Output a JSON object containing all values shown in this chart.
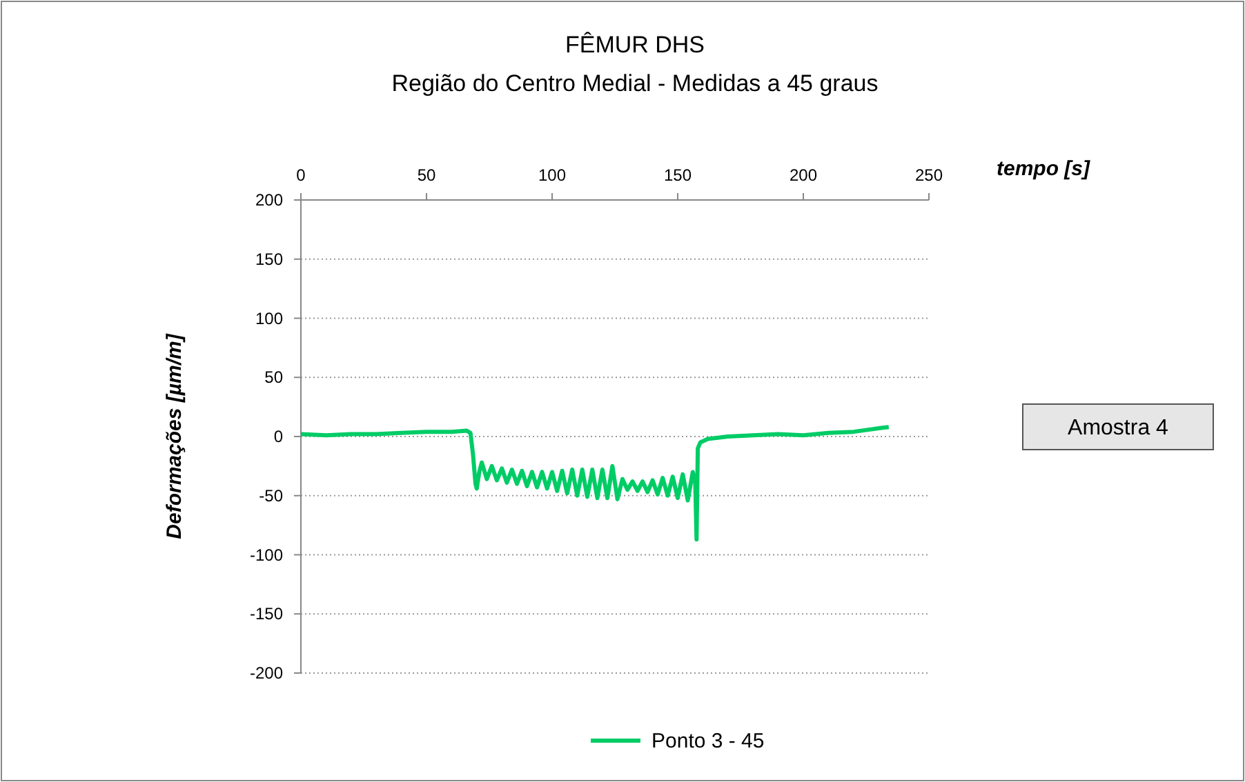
{
  "chart_data": {
    "type": "line",
    "title": "FÊMUR DHS",
    "subtitle": "Região do Centro Medial - Medidas a 45 graus",
    "xlabel": "tempo [s]",
    "ylabel": "Deformações [µm/m]",
    "annotations": [
      "Amostra 4"
    ],
    "xlim": [
      0,
      250
    ],
    "xticks": [
      0,
      50,
      100,
      150,
      200,
      250
    ],
    "ylim": [
      -200,
      200
    ],
    "yticks": [
      -200,
      -150,
      -100,
      -50,
      0,
      50,
      100,
      150,
      200
    ],
    "grid": "y",
    "legend": "bottom",
    "marker": "none",
    "line_style": "solid",
    "series": [
      {
        "name": "Ponto 3 - 45",
        "color": "#00cc66",
        "x": [
          0,
          10,
          20,
          30,
          40,
          50,
          60,
          66,
          67.5,
          68.5,
          69.5,
          70,
          71,
          72,
          74,
          76,
          78,
          80,
          82,
          84,
          86,
          88,
          90,
          92,
          94,
          96,
          98,
          100,
          102,
          104,
          106,
          108,
          110,
          112,
          114,
          116,
          118,
          120,
          122,
          124,
          126,
          128,
          130,
          132,
          134,
          136,
          138,
          140,
          142,
          144,
          146,
          148,
          150,
          152,
          154,
          156,
          157,
          157.5,
          158,
          159,
          162,
          170,
          180,
          190,
          200,
          210,
          220,
          230,
          234
        ],
        "values": [
          2,
          1,
          2,
          2,
          3,
          4,
          4,
          5,
          3,
          -15,
          -40,
          -44,
          -30,
          -22,
          -36,
          -25,
          -37,
          -27,
          -39,
          -28,
          -40,
          -29,
          -42,
          -30,
          -43,
          -30,
          -44,
          -30,
          -46,
          -29,
          -48,
          -28,
          -50,
          -28,
          -51,
          -28,
          -52,
          -28,
          -52,
          -25,
          -53,
          -36,
          -45,
          -38,
          -46,
          -38,
          -47,
          -37,
          -49,
          -35,
          -50,
          -34,
          -52,
          -32,
          -54,
          -30,
          -40,
          -87,
          -10,
          -5,
          -2,
          0,
          1,
          2,
          1,
          3,
          4,
          7,
          8
        ]
      }
    ]
  }
}
